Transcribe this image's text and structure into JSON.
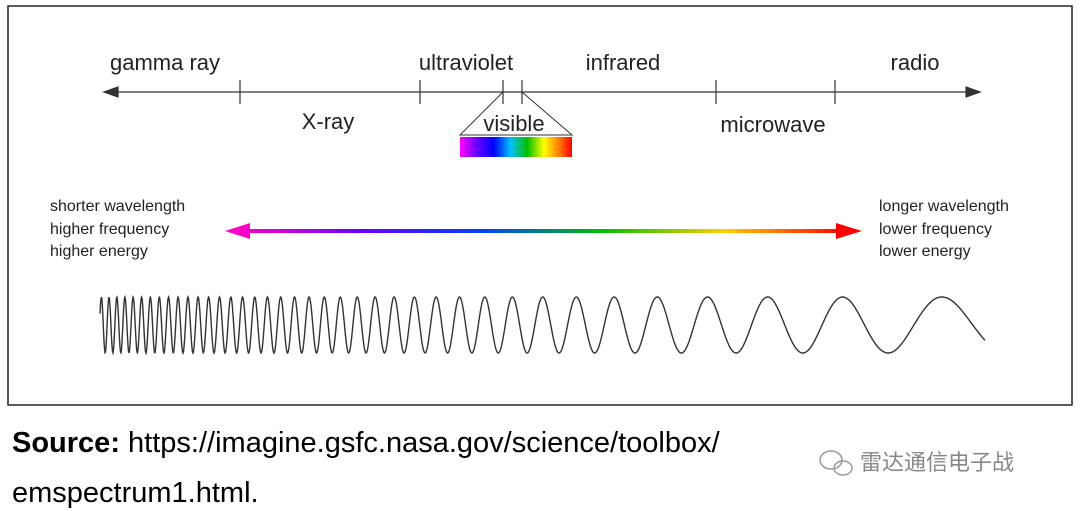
{
  "spectrum": {
    "bands_above": [
      "gamma ray",
      "ultraviolet",
      "infrared",
      "radio"
    ],
    "bands_below": [
      "X-ray",
      "visible",
      "microwave"
    ]
  },
  "left_notes": [
    "shorter wavelength",
    "higher frequency",
    "higher energy"
  ],
  "right_notes": [
    "longer wavelength",
    "lower frequency",
    "lower energy"
  ],
  "source": {
    "label": "Source:",
    "url_line1": "https://imagine.gsfc.nasa.gov/science/toolbox/",
    "url_line2": "emspectrum1.html."
  },
  "watermark": "雷达通信电子战"
}
